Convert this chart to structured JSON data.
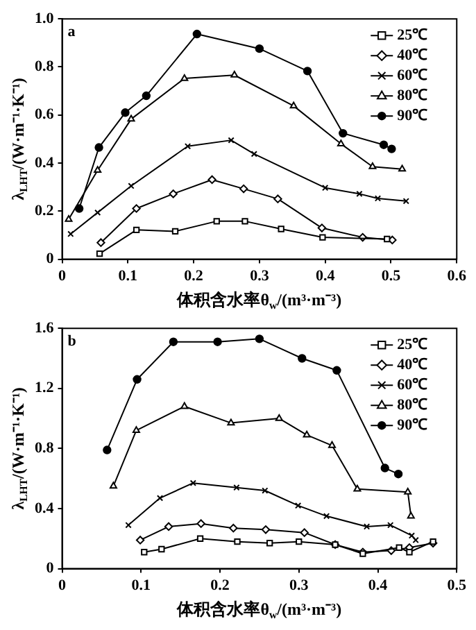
{
  "chart_data": [
    {
      "type": "line",
      "annotations": [
        "a"
      ],
      "xlabel": "体积含水率θ$_{w}$/(m³·m⁻³)",
      "ylabel": "λ$_{LHT}$/(W·m⁻¹·K⁻¹)",
      "xlim": [
        0,
        0.6
      ],
      "xticks": [
        0,
        0.1,
        0.2,
        0.3,
        0.4,
        0.5,
        0.6
      ],
      "ylim": [
        0,
        1
      ],
      "yticks": [
        0,
        0.2,
        0.4,
        0.6,
        0.8,
        {
          "value": 1,
          "label": "1.0"
        }
      ],
      "grid": false,
      "legend": "top right",
      "series": [
        {
          "name": "25℃",
          "color": "#000000",
          "marker": "square",
          "x": [
            0.057,
            0.113,
            0.172,
            0.235,
            0.278,
            0.333,
            0.396,
            0.494
          ],
          "values": [
            0.023,
            0.122,
            0.116,
            0.158,
            0.158,
            0.126,
            0.091,
            0.084
          ]
        },
        {
          "name": "40℃",
          "color": "#000000",
          "marker": "diamond",
          "x": [
            0.059,
            0.113,
            0.169,
            0.228,
            0.276,
            0.328,
            0.395,
            0.457,
            0.502
          ],
          "values": [
            0.069,
            0.211,
            0.272,
            0.331,
            0.293,
            0.251,
            0.13,
            0.091,
            0.08
          ]
        },
        {
          "name": "60℃",
          "color": "#000000",
          "marker": "cross",
          "x": [
            0.013,
            0.054,
            0.105,
            0.191,
            0.257,
            0.292,
            0.4,
            0.452,
            0.48,
            0.523
          ],
          "values": [
            0.105,
            0.194,
            0.305,
            0.47,
            0.495,
            0.438,
            0.297,
            0.272,
            0.253,
            0.242
          ]
        },
        {
          "name": "80℃",
          "color": "#000000",
          "marker": "triangle",
          "x": [
            0.01,
            0.054,
            0.105,
            0.186,
            0.262,
            0.352,
            0.424,
            0.472,
            0.517
          ],
          "values": [
            0.166,
            0.37,
            0.583,
            0.752,
            0.766,
            0.638,
            0.48,
            0.385,
            0.375
          ]
        },
        {
          "name": "90℃",
          "color": "#000000",
          "marker": "circle",
          "x": [
            0.026,
            0.056,
            0.096,
            0.128,
            0.205,
            0.3,
            0.373,
            0.427,
            0.489,
            0.501
          ],
          "values": [
            0.211,
            0.465,
            0.61,
            0.68,
            0.937,
            0.876,
            0.783,
            0.524,
            0.476,
            0.459
          ]
        }
      ]
    },
    {
      "type": "line",
      "annotations": [
        "b"
      ],
      "xlabel": "体积含水率θ$_{w}$/(m³·m⁻³)",
      "ylabel": "λ$_{LHT}$/(W·m⁻¹·K⁻¹)",
      "xlim": [
        0,
        0.5
      ],
      "xticks": [
        0,
        0.1,
        0.2,
        0.3,
        0.4,
        0.5
      ],
      "ylim": [
        0,
        1.6
      ],
      "yticks": [
        0,
        0.4,
        0.8,
        1.2,
        1.6
      ],
      "grid": false,
      "legend": "top right",
      "series": [
        {
          "name": "25℃",
          "color": "#000000",
          "marker": "square",
          "x": [
            0.104,
            0.126,
            0.175,
            0.222,
            0.263,
            0.3,
            0.346,
            0.381,
            0.427,
            0.44,
            0.47
          ],
          "values": [
            0.11,
            0.13,
            0.2,
            0.18,
            0.17,
            0.18,
            0.16,
            0.1,
            0.14,
            0.11,
            0.18
          ]
        },
        {
          "name": "40℃",
          "color": "#000000",
          "marker": "diamond",
          "x": [
            0.099,
            0.135,
            0.176,
            0.217,
            0.258,
            0.307,
            0.346,
            0.381,
            0.417,
            0.44,
            0.47
          ],
          "values": [
            0.19,
            0.28,
            0.3,
            0.27,
            0.26,
            0.24,
            0.16,
            0.11,
            0.12,
            0.14,
            0.17
          ]
        },
        {
          "name": "60℃",
          "color": "#000000",
          "marker": "cross",
          "x": [
            0.084,
            0.124,
            0.166,
            0.221,
            0.257,
            0.299,
            0.335,
            0.386,
            0.416,
            0.443,
            0.448
          ],
          "values": [
            0.29,
            0.47,
            0.57,
            0.54,
            0.52,
            0.42,
            0.35,
            0.28,
            0.29,
            0.22,
            0.19
          ]
        },
        {
          "name": "80℃",
          "color": "#000000",
          "marker": "triangle",
          "x": [
            0.065,
            0.094,
            0.155,
            0.214,
            0.275,
            0.31,
            0.342,
            0.374,
            0.438,
            0.442
          ],
          "values": [
            0.55,
            0.92,
            1.08,
            0.97,
            1.0,
            0.89,
            0.82,
            0.53,
            0.51,
            0.35
          ]
        },
        {
          "name": "90℃",
          "color": "#000000",
          "marker": "circle",
          "x": [
            0.057,
            0.095,
            0.141,
            0.197,
            0.25,
            0.304,
            0.348,
            0.409,
            0.426
          ],
          "values": [
            0.79,
            1.26,
            1.51,
            1.51,
            1.53,
            1.4,
            1.32,
            0.67,
            0.63
          ]
        }
      ]
    }
  ]
}
